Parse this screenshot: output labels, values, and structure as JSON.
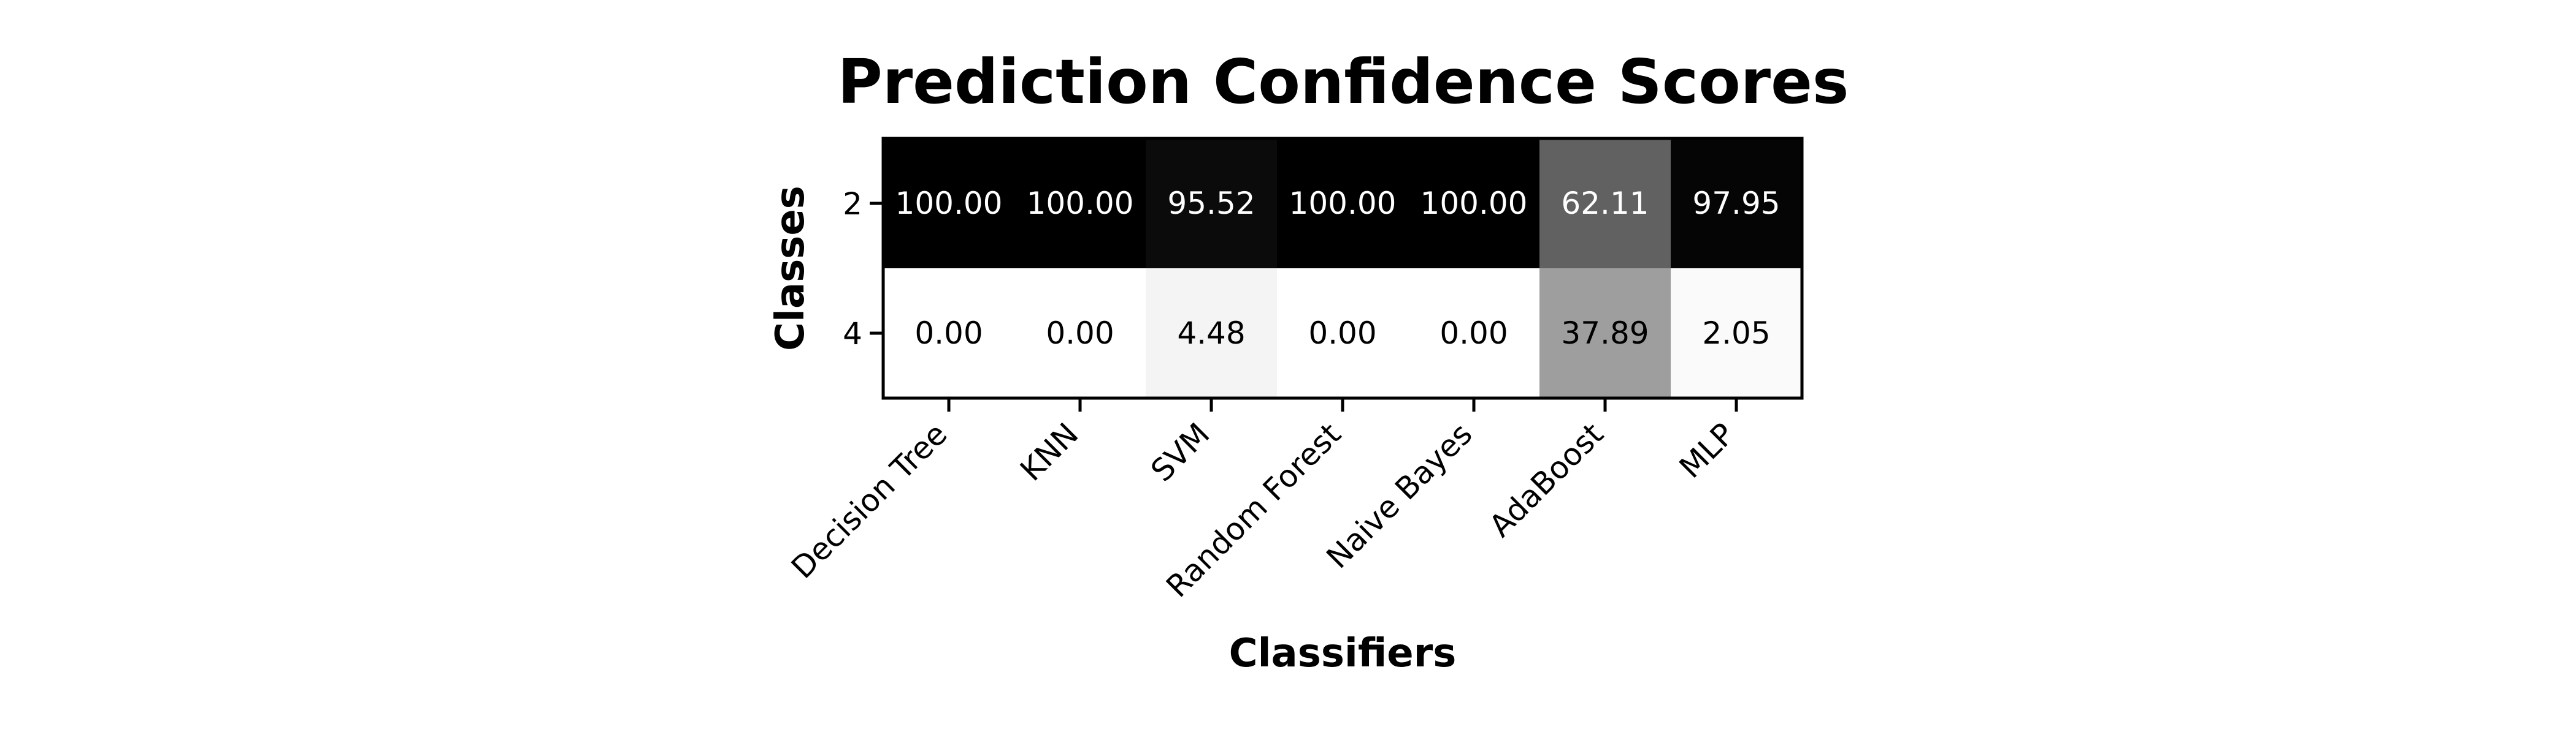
{
  "chart_data": {
    "type": "heatmap",
    "title": "Prediction Confidence Scores",
    "xlabel": "Classifiers",
    "ylabel": "Classes",
    "x_categories": [
      "Decision Tree",
      "KNN",
      "SVM",
      "Random Forest",
      "Naive Bayes",
      "AdaBoost",
      "MLP"
    ],
    "y_categories": [
      "2",
      "4"
    ],
    "values": [
      [
        100.0,
        100.0,
        95.52,
        100.0,
        100.0,
        62.11,
        97.95
      ],
      [
        0.0,
        0.0,
        4.48,
        0.0,
        0.0,
        37.89,
        2.05
      ]
    ],
    "value_format": "0.00",
    "value_range": [
      0,
      100
    ],
    "colormap": "Greys",
    "colorbar": false,
    "grid": false
  }
}
